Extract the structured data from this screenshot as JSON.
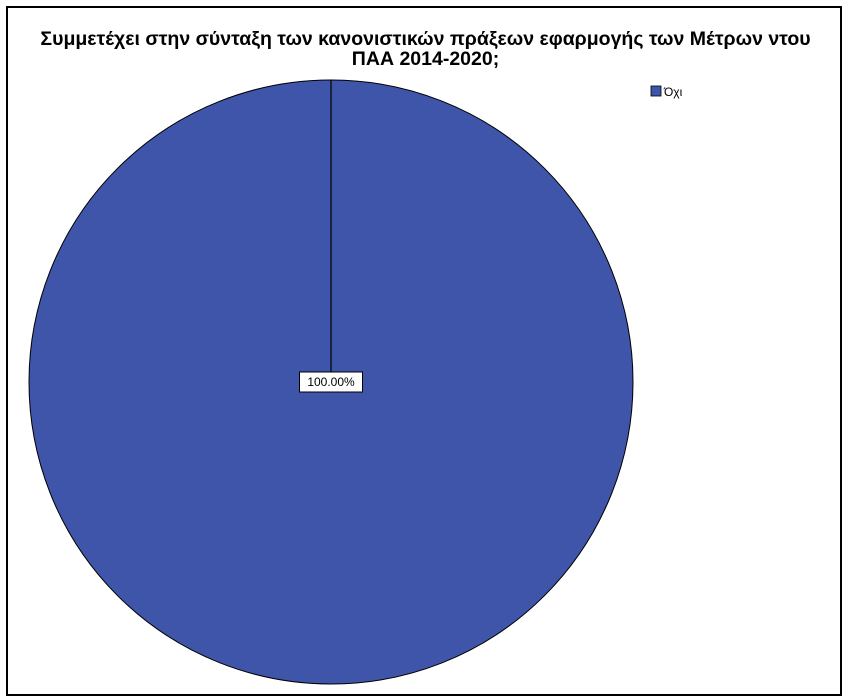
{
  "chart_data": {
    "type": "pie",
    "title": "Συμμετέχει στην σύνταξη των κανονιστικών πράξεων εφαρμογής των Μέτρων ντου ΠΑΑ 2014-2020;",
    "categories": [
      "Όχι"
    ],
    "values": [
      100.0
    ],
    "data_labels": [
      "100.00%"
    ],
    "colors": [
      "#3f55a9"
    ],
    "legend": {
      "entries": [
        "Όχι"
      ],
      "position": "top-right"
    }
  }
}
